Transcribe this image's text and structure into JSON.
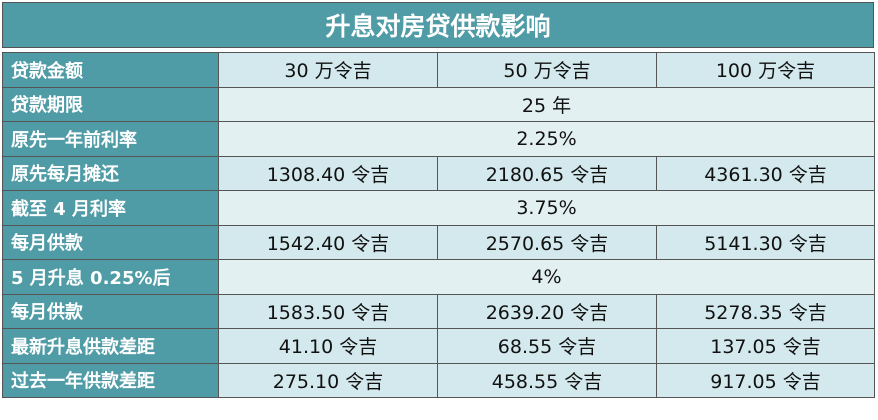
{
  "header": {
    "title": "升息对房贷供款影响"
  },
  "table": {
    "rows": [
      [
        "贷款金额",
        "30 万令吉",
        "50 万令吉",
        "100 万令吉"
      ],
      [
        "贷款期限",
        "25 年"
      ],
      [
        "原先一年前利率",
        "2.25%"
      ],
      [
        "原先每月摊还",
        "1308.40 令吉",
        "2180.65 令吉",
        "4361.30 令吉"
      ],
      [
        "截至 4 月利率",
        "3.75%"
      ],
      [
        "每月供款",
        "1542.40 令吉",
        "2570.65 令吉",
        "5141.30 令吉"
      ],
      [
        "5 月升息 0.25%后",
        "4%"
      ],
      [
        "每月供款",
        "1583.50 令吉",
        "2639.20 令吉",
        "5278.35 令吉"
      ],
      [
        "最新升息供款差距",
        "41.10 令吉",
        "68.55 令吉",
        "137.05 令吉"
      ],
      [
        "过去一年供款差距",
        "275.10 令吉",
        "458.55 令吉",
        "917.05 令吉"
      ]
    ]
  }
}
